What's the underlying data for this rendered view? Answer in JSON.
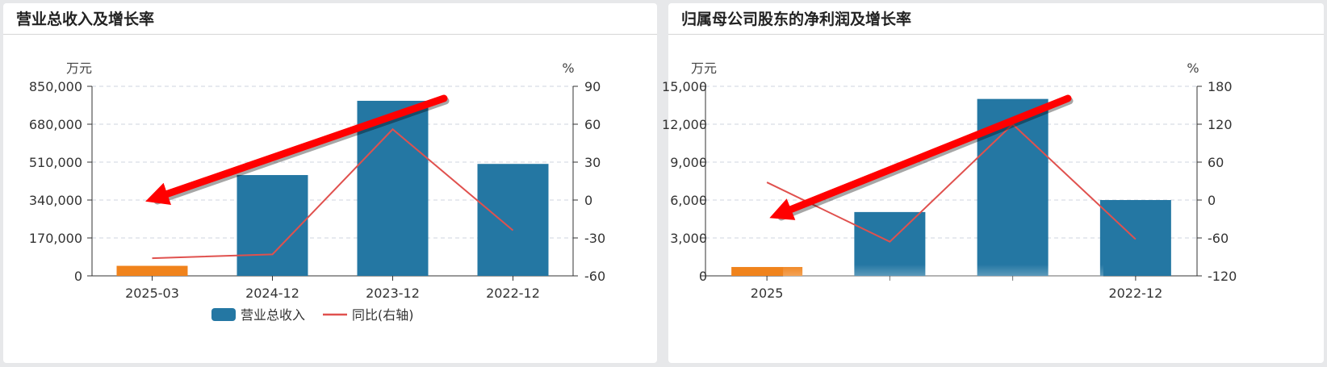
{
  "colors": {
    "bar": "#2477a3",
    "bar_highlight": "#f0831c",
    "line": "#e0514e",
    "grid": "#cfd6df",
    "axis": "#333333",
    "arrow": "#ff0000"
  },
  "chart_data": [
    {
      "type": "bar",
      "title": "营业总收入及增长率",
      "left_unit": "万元",
      "right_unit": "%",
      "categories": [
        "2025-03",
        "2024-12",
        "2023-12",
        "2022-12"
      ],
      "y_ticks": [
        "850,000",
        "680,000",
        "510,000",
        "340,000",
        "170,000",
        "0"
      ],
      "y2_ticks": [
        "90",
        "60",
        "30",
        "0",
        "-30",
        "-60"
      ],
      "ylim": [
        0,
        850000
      ],
      "y2lim": [
        -60,
        90
      ],
      "series": [
        {
          "name": "营业总收入",
          "type": "bar",
          "values": [
            45000,
            452000,
            785000,
            502000
          ]
        },
        {
          "name": "同比(右轴)",
          "type": "line",
          "axis": "right",
          "values": [
            -46,
            -43,
            56,
            -24
          ]
        }
      ],
      "highlight_index": 0,
      "legend": [
        "营业总收入",
        "同比(右轴)"
      ],
      "grid": true
    },
    {
      "type": "bar",
      "title": "归属母公司股东的净利润及增长率",
      "left_unit": "万元",
      "right_unit": "%",
      "categories": [
        "2025",
        "",
        "",
        "2022-12"
      ],
      "y_ticks": [
        "15,000",
        "12,000",
        "9,000",
        "6,000",
        "3,000",
        "0"
      ],
      "y2_ticks": [
        "180",
        "120",
        "60",
        "0",
        "-60",
        "-120"
      ],
      "ylim": [
        0,
        15000
      ],
      "y2lim": [
        -120,
        180
      ],
      "series": [
        {
          "type": "bar",
          "values": [
            700,
            5050,
            14000,
            6000
          ]
        },
        {
          "type": "line",
          "axis": "right",
          "values": [
            28,
            -66,
            120,
            -62
          ]
        }
      ],
      "highlight_index": 0,
      "grid": true
    }
  ]
}
